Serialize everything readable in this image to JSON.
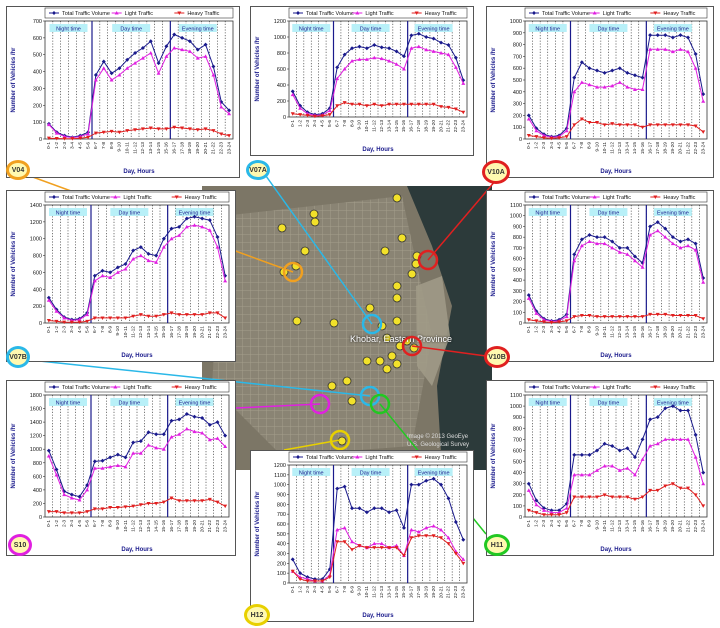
{
  "map": {
    "place_label": "Khobar, Eastern Province",
    "credit_1": "Image © 2013 GeoEye",
    "credit_2": "U.S. Geological Survey"
  },
  "common": {
    "legend": [
      "Total Traffic Volume",
      "Light Traffic",
      "Heavy Traffic"
    ],
    "periods": [
      "Night time",
      "Day time",
      "Evening time"
    ],
    "xlabel": "Day, Hours",
    "ylabel": "Number of Vehicles /hr",
    "hour_labels": [
      "0-1",
      "1-2",
      "2-3",
      "3-4",
      "4-5",
      "5-6",
      "6-7",
      "7-8",
      "8-9",
      "9-10",
      "10-11",
      "11-12",
      "12-13",
      "13-14",
      "14-15",
      "15-16",
      "16-17",
      "17-18",
      "18-19",
      "19-20",
      "20-21",
      "21-22",
      "22-23",
      "23-24"
    ],
    "colors": {
      "total": "#1a1a8c",
      "light": "#e020e0",
      "heavy": "#e02020",
      "period_line": "#1a1a8c"
    }
  },
  "sites": {
    "V04": "V04",
    "V07A": "V07A",
    "V10A": "V10A",
    "V07B": "V07B",
    "V10B": "V10B",
    "S10": "S10",
    "H11": "H11",
    "H12": "H12"
  },
  "chart_data": [
    {
      "id": "V04",
      "type": "line",
      "ylim": [
        0,
        700
      ],
      "yticks": [
        0,
        100,
        200,
        300,
        400,
        500,
        600,
        700
      ],
      "series": [
        {
          "name": "Total Traffic Volume",
          "values": [
            90,
            40,
            20,
            10,
            20,
            40,
            380,
            460,
            390,
            420,
            470,
            510,
            540,
            580,
            450,
            550,
            620,
            600,
            580,
            530,
            560,
            430,
            220,
            170
          ]
        },
        {
          "name": "Light Traffic",
          "values": [
            85,
            35,
            15,
            8,
            15,
            30,
            350,
            420,
            350,
            380,
            420,
            450,
            480,
            510,
            390,
            490,
            540,
            530,
            520,
            480,
            490,
            380,
            190,
            150
          ]
        },
        {
          "name": "Heavy Traffic",
          "values": [
            5,
            3,
            2,
            2,
            5,
            10,
            35,
            40,
            45,
            40,
            50,
            55,
            60,
            65,
            60,
            60,
            70,
            65,
            60,
            55,
            60,
            50,
            30,
            20
          ]
        }
      ]
    },
    {
      "id": "V07A",
      "type": "line",
      "ylim": [
        0,
        1200
      ],
      "yticks": [
        0,
        200,
        400,
        600,
        800,
        1000,
        1200
      ],
      "series": [
        {
          "name": "Total Traffic Volume",
          "values": [
            320,
            140,
            60,
            30,
            40,
            110,
            620,
            780,
            860,
            880,
            860,
            900,
            870,
            860,
            820,
            760,
            1020,
            1040,
            1000,
            980,
            930,
            900,
            740,
            460
          ]
        },
        {
          "name": "Light Traffic",
          "values": [
            280,
            110,
            40,
            20,
            25,
            80,
            480,
            600,
            700,
            720,
            720,
            740,
            730,
            700,
            660,
            600,
            860,
            880,
            840,
            820,
            800,
            780,
            620,
            420
          ]
        },
        {
          "name": "Heavy Traffic",
          "values": [
            40,
            30,
            20,
            10,
            15,
            30,
            140,
            180,
            160,
            160,
            140,
            160,
            140,
            160,
            160,
            160,
            160,
            160,
            160,
            160,
            130,
            120,
            100,
            60
          ]
        }
      ]
    },
    {
      "id": "V10A",
      "type": "line",
      "ylim": [
        0,
        1000
      ],
      "yticks": [
        0,
        100,
        200,
        300,
        400,
        500,
        600,
        700,
        800,
        900,
        1000
      ],
      "series": [
        {
          "name": "Total Traffic Volume",
          "values": [
            200,
            90,
            40,
            20,
            30,
            90,
            520,
            650,
            600,
            580,
            560,
            580,
            600,
            560,
            540,
            520,
            880,
            880,
            880,
            860,
            880,
            860,
            720,
            380
          ]
        },
        {
          "name": "Light Traffic",
          "values": [
            170,
            70,
            30,
            15,
            20,
            70,
            400,
            480,
            460,
            440,
            440,
            450,
            480,
            440,
            420,
            420,
            760,
            760,
            760,
            740,
            760,
            740,
            600,
            320
          ]
        },
        {
          "name": "Heavy Traffic",
          "values": [
            30,
            20,
            10,
            5,
            10,
            20,
            120,
            170,
            140,
            140,
            120,
            130,
            120,
            120,
            120,
            100,
            120,
            120,
            120,
            120,
            120,
            120,
            110,
            60
          ]
        }
      ]
    },
    {
      "id": "V07B",
      "type": "line",
      "ylim": [
        0,
        1400
      ],
      "yticks": [
        0,
        200,
        400,
        600,
        800,
        1000,
        1200,
        1400
      ],
      "series": [
        {
          "name": "Total Traffic Volume",
          "values": [
            300,
            160,
            70,
            40,
            50,
            120,
            560,
            620,
            600,
            660,
            700,
            860,
            900,
            820,
            800,
            1000,
            1120,
            1140,
            1240,
            1260,
            1240,
            1220,
            1020,
            560
          ]
        },
        {
          "name": "Light Traffic",
          "values": [
            270,
            140,
            60,
            30,
            40,
            100,
            500,
            560,
            540,
            600,
            640,
            760,
            800,
            740,
            720,
            900,
            1000,
            1040,
            1140,
            1160,
            1140,
            1100,
            900,
            500
          ]
        },
        {
          "name": "Heavy Traffic",
          "values": [
            30,
            20,
            10,
            10,
            10,
            20,
            60,
            60,
            60,
            60,
            60,
            80,
            100,
            80,
            80,
            100,
            120,
            100,
            100,
            100,
            100,
            120,
            120,
            60
          ]
        }
      ]
    },
    {
      "id": "V10B",
      "type": "line",
      "ylim": [
        0,
        1100
      ],
      "yticks": [
        0,
        100,
        200,
        300,
        400,
        500,
        600,
        700,
        800,
        900,
        1000,
        1100
      ],
      "series": [
        {
          "name": "Total Traffic Volume",
          "values": [
            260,
            110,
            40,
            20,
            30,
            80,
            640,
            780,
            820,
            800,
            800,
            760,
            700,
            700,
            620,
            560,
            900,
            940,
            880,
            800,
            760,
            780,
            740,
            420
          ]
        },
        {
          "name": "Light Traffic",
          "values": [
            230,
            90,
            30,
            15,
            20,
            60,
            580,
            720,
            760,
            740,
            740,
            700,
            660,
            640,
            580,
            520,
            820,
            860,
            800,
            740,
            700,
            720,
            680,
            380
          ]
        },
        {
          "name": "Heavy Traffic",
          "values": [
            30,
            20,
            10,
            5,
            10,
            20,
            60,
            70,
            70,
            60,
            60,
            60,
            60,
            60,
            60,
            60,
            80,
            80,
            80,
            70,
            70,
            70,
            70,
            40
          ]
        }
      ]
    },
    {
      "id": "S10",
      "type": "line",
      "ylim": [
        0,
        1800
      ],
      "yticks": [
        0,
        200,
        400,
        600,
        800,
        1000,
        1200,
        1400,
        1600,
        1800
      ],
      "series": [
        {
          "name": "Total Traffic Volume",
          "values": [
            980,
            700,
            380,
            330,
            300,
            470,
            820,
            830,
            880,
            920,
            880,
            1100,
            1120,
            1250,
            1220,
            1220,
            1420,
            1440,
            1520,
            1480,
            1460,
            1360,
            1400,
            1200
          ]
        },
        {
          "name": "Light Traffic",
          "values": [
            900,
            620,
            330,
            280,
            250,
            400,
            720,
            720,
            740,
            760,
            740,
            940,
            940,
            1060,
            1020,
            1000,
            1180,
            1220,
            1300,
            1260,
            1240,
            1140,
            1160,
            1040
          ]
        },
        {
          "name": "Heavy Traffic",
          "values": [
            80,
            80,
            60,
            60,
            60,
            80,
            120,
            120,
            140,
            140,
            150,
            160,
            180,
            200,
            200,
            220,
            280,
            240,
            240,
            240,
            240,
            260,
            220,
            160
          ]
        }
      ]
    },
    {
      "id": "H11",
      "type": "line",
      "ylim": [
        0,
        1100
      ],
      "yticks": [
        0,
        100,
        200,
        300,
        400,
        500,
        600,
        700,
        800,
        900,
        1000,
        1100
      ],
      "series": [
        {
          "name": "Total Traffic Volume",
          "values": [
            300,
            150,
            80,
            60,
            60,
            120,
            560,
            560,
            560,
            600,
            660,
            640,
            600,
            620,
            540,
            700,
            880,
            900,
            980,
            1000,
            960,
            960,
            740,
            400
          ]
        },
        {
          "name": "Light Traffic",
          "values": [
            240,
            110,
            60,
            40,
            40,
            80,
            380,
            380,
            380,
            420,
            460,
            460,
            420,
            440,
            380,
            520,
            640,
            660,
            700,
            700,
            700,
            700,
            540,
            300
          ]
        },
        {
          "name": "Heavy Traffic",
          "values": [
            60,
            40,
            20,
            20,
            20,
            40,
            180,
            180,
            180,
            180,
            200,
            180,
            180,
            180,
            160,
            180,
            240,
            240,
            280,
            300,
            260,
            260,
            200,
            100
          ]
        }
      ]
    },
    {
      "id": "H12",
      "type": "line",
      "ylim": [
        0,
        1200
      ],
      "yticks": [
        0,
        100,
        200,
        300,
        400,
        500,
        600,
        700,
        800,
        900,
        1000,
        1100,
        1200
      ],
      "series": [
        {
          "name": "Total Traffic Volume",
          "values": [
            240,
            100,
            60,
            40,
            40,
            140,
            960,
            980,
            760,
            760,
            720,
            760,
            760,
            720,
            740,
            560,
            1000,
            1000,
            1040,
            1060,
            1000,
            860,
            620,
            440
          ]
        },
        {
          "name": "Light Traffic",
          "values": [
            120,
            60,
            40,
            20,
            20,
            80,
            540,
            560,
            420,
            380,
            360,
            400,
            400,
            360,
            380,
            280,
            540,
            520,
            560,
            580,
            540,
            460,
            320,
            240
          ]
        },
        {
          "name": "Heavy Traffic",
          "values": [
            120,
            40,
            20,
            20,
            20,
            60,
            420,
            420,
            340,
            380,
            360,
            360,
            360,
            360,
            360,
            280,
            460,
            480,
            480,
            480,
            460,
            400,
            300,
            200
          ]
        }
      ]
    }
  ]
}
